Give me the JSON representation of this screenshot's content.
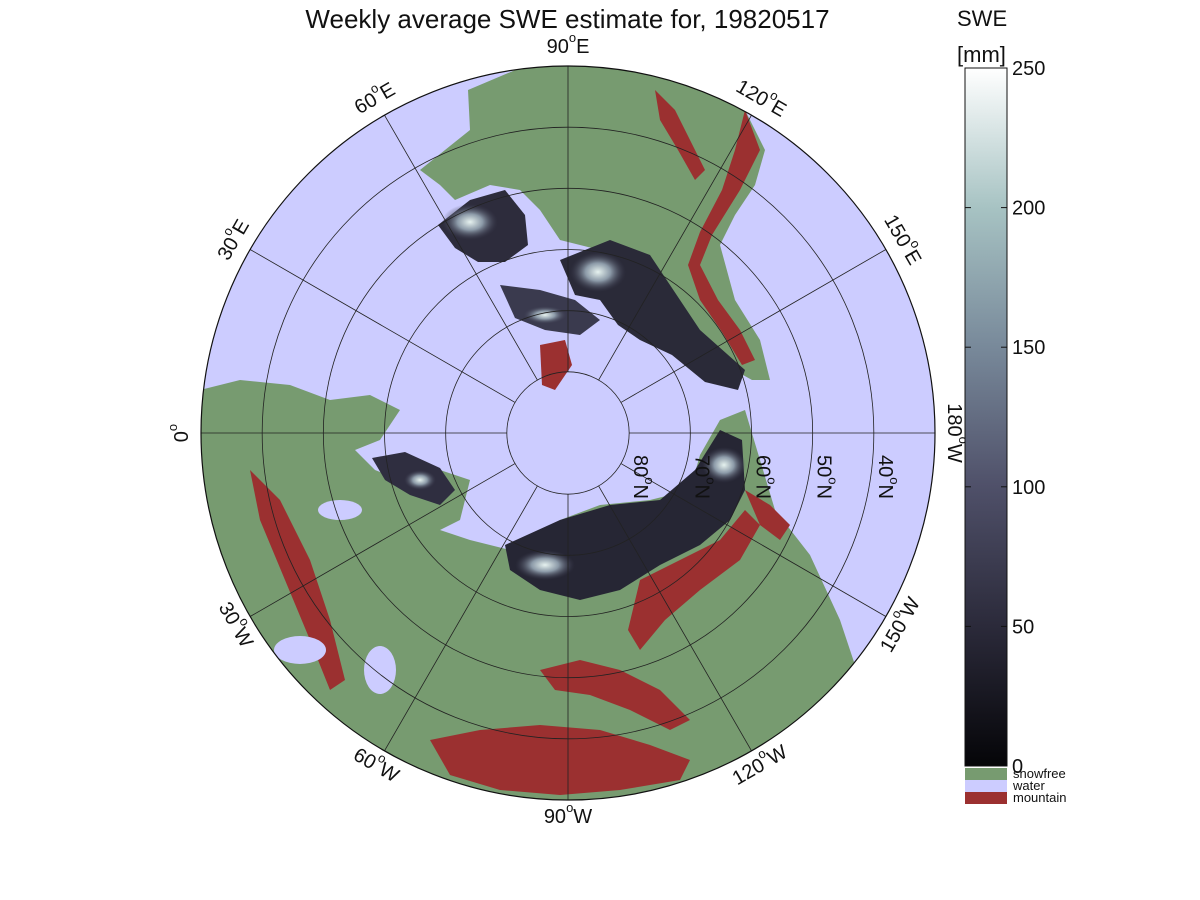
{
  "title": "Weekly average SWE estimate for, 19820517",
  "map": {
    "projection": "north-polar-stereographic",
    "colors": {
      "water": "#ccccff",
      "snowfree": "#779b70",
      "mountain": "#9b3030",
      "grid": "#222222"
    },
    "longitude_labels": [
      {
        "lon": -90,
        "label": "90",
        "hemi": "W"
      },
      {
        "lon": -120,
        "label": "120",
        "hemi": "W"
      },
      {
        "lon": -150,
        "label": "150",
        "hemi": "W"
      },
      {
        "lon": 180,
        "label": "180",
        "hemi": "W"
      },
      {
        "lon": 150,
        "label": "150",
        "hemi": "E"
      },
      {
        "lon": 120,
        "label": "120",
        "hemi": "E"
      },
      {
        "lon": 90,
        "label": "90",
        "hemi": "E"
      },
      {
        "lon": 60,
        "label": "60",
        "hemi": "E"
      },
      {
        "lon": 30,
        "label": "30",
        "hemi": "E"
      },
      {
        "lon": 0,
        "label": "0",
        "hemi": ""
      },
      {
        "lon": -30,
        "label": "30",
        "hemi": "W"
      },
      {
        "lon": -60,
        "label": "60",
        "hemi": "W"
      }
    ],
    "latitude_circles": [
      80,
      70,
      60,
      50,
      40
    ],
    "latitude_labels": [
      {
        "lat": 80,
        "label": "80",
        "hemi": "N"
      },
      {
        "lat": 70,
        "label": "70",
        "hemi": "N"
      },
      {
        "lat": 60,
        "label": "60",
        "hemi": "N"
      },
      {
        "lat": 50,
        "label": "50",
        "hemi": "N"
      },
      {
        "lat": 40,
        "label": "40",
        "hemi": "N"
      }
    ],
    "outer_latitude": 30,
    "degree_symbol": "o"
  },
  "colorbar": {
    "label_line1": "SWE",
    "label_line2": "[mm]",
    "min": 0,
    "max": 250,
    "ticks": [
      0,
      50,
      100,
      150,
      200,
      250
    ],
    "gradient": [
      "#050508",
      "#2b2a3a",
      "#4f5069",
      "#78899a",
      "#a7c3c3",
      "#ffffff"
    ],
    "categories": [
      {
        "label": "snowfree",
        "color": "#779b70"
      },
      {
        "label": "water",
        "color": "#ccccff"
      },
      {
        "label": "mountain",
        "color": "#9b3030"
      }
    ]
  }
}
